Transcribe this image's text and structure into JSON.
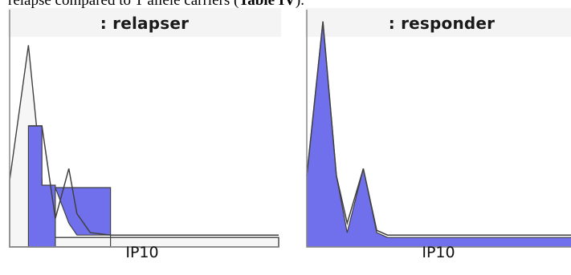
{
  "caption": {
    "text": "relapse compared to T allele carriers (",
    "bold": "Table IV",
    "end": ")."
  },
  "chart_data": [
    {
      "type": "area",
      "title": ": relapser",
      "xlabel": "IP10",
      "ylabel": "",
      "xlim": [
        0,
        10
      ],
      "ylim": [
        0,
        1
      ],
      "grid": false,
      "legend": "none",
      "series": [
        {
          "values": [
            [
              0,
              0
            ],
            [
              0,
              0.28
            ],
            [
              0.7,
              0.85
            ],
            [
              1.2,
              0.28
            ],
            [
              1.2,
              0
            ],
            [
              10,
              0
            ],
            [
              10,
              0.04
            ],
            [
              1.2,
              0.04
            ],
            [
              1.2,
              0
            ]
          ],
          "style": "outline"
        },
        {
          "values": [
            [
              0.7,
              0
            ],
            [
              0.7,
              0.51
            ],
            [
              1.2,
              0.51
            ],
            [
              1.2,
              0.26
            ],
            [
              1.7,
              0.26
            ],
            [
              1.7,
              0
            ],
            [
              3.75,
              0
            ],
            [
              3.75,
              0.25
            ],
            [
              1.7,
              0.25
            ],
            [
              2.2,
              0.1
            ],
            [
              2.5,
              0.05
            ],
            [
              3.75,
              0.05
            ],
            [
              3.75,
              0
            ]
          ],
          "style": "filled"
        },
        {
          "values": [
            [
              0.7,
              0.51
            ],
            [
              1.2,
              0.51
            ],
            [
              1.7,
              0.12
            ],
            [
              2.2,
              0.33
            ],
            [
              2.5,
              0.14
            ],
            [
              3.0,
              0.06
            ],
            [
              3.75,
              0.05
            ],
            [
              10,
              0.05
            ]
          ],
          "style": "line"
        }
      ],
      "fill_color": "#7070ec",
      "outline_color": "#404040",
      "plot_bg": "#ffffff"
    },
    {
      "type": "area",
      "title": ": responder",
      "xlabel": "IP10",
      "ylabel": "",
      "xlim": [
        0,
        10
      ],
      "ylim": [
        0,
        1
      ],
      "grid": false,
      "legend": "none",
      "series": [
        {
          "values": [
            [
              0,
              0
            ],
            [
              0,
              0.3
            ],
            [
              0.6,
              0.95
            ],
            [
              1.1,
              0.3
            ],
            [
              1.5,
              0.06
            ],
            [
              2.1,
              0.33
            ],
            [
              2.6,
              0.06
            ],
            [
              3.0,
              0.04
            ],
            [
              10,
              0.04
            ],
            [
              10,
              0
            ]
          ],
          "style": "filled"
        },
        {
          "values": [
            [
              0,
              0.3
            ],
            [
              0.6,
              0.95
            ],
            [
              1.1,
              0.3
            ],
            [
              1.5,
              0.1
            ],
            [
              2.1,
              0.33
            ],
            [
              2.6,
              0.07
            ],
            [
              3.0,
              0.05
            ],
            [
              10,
              0.05
            ]
          ],
          "style": "line"
        }
      ],
      "fill_color": "#7070ec",
      "outline_color": "#404040",
      "plot_bg": "#ffffff"
    }
  ]
}
